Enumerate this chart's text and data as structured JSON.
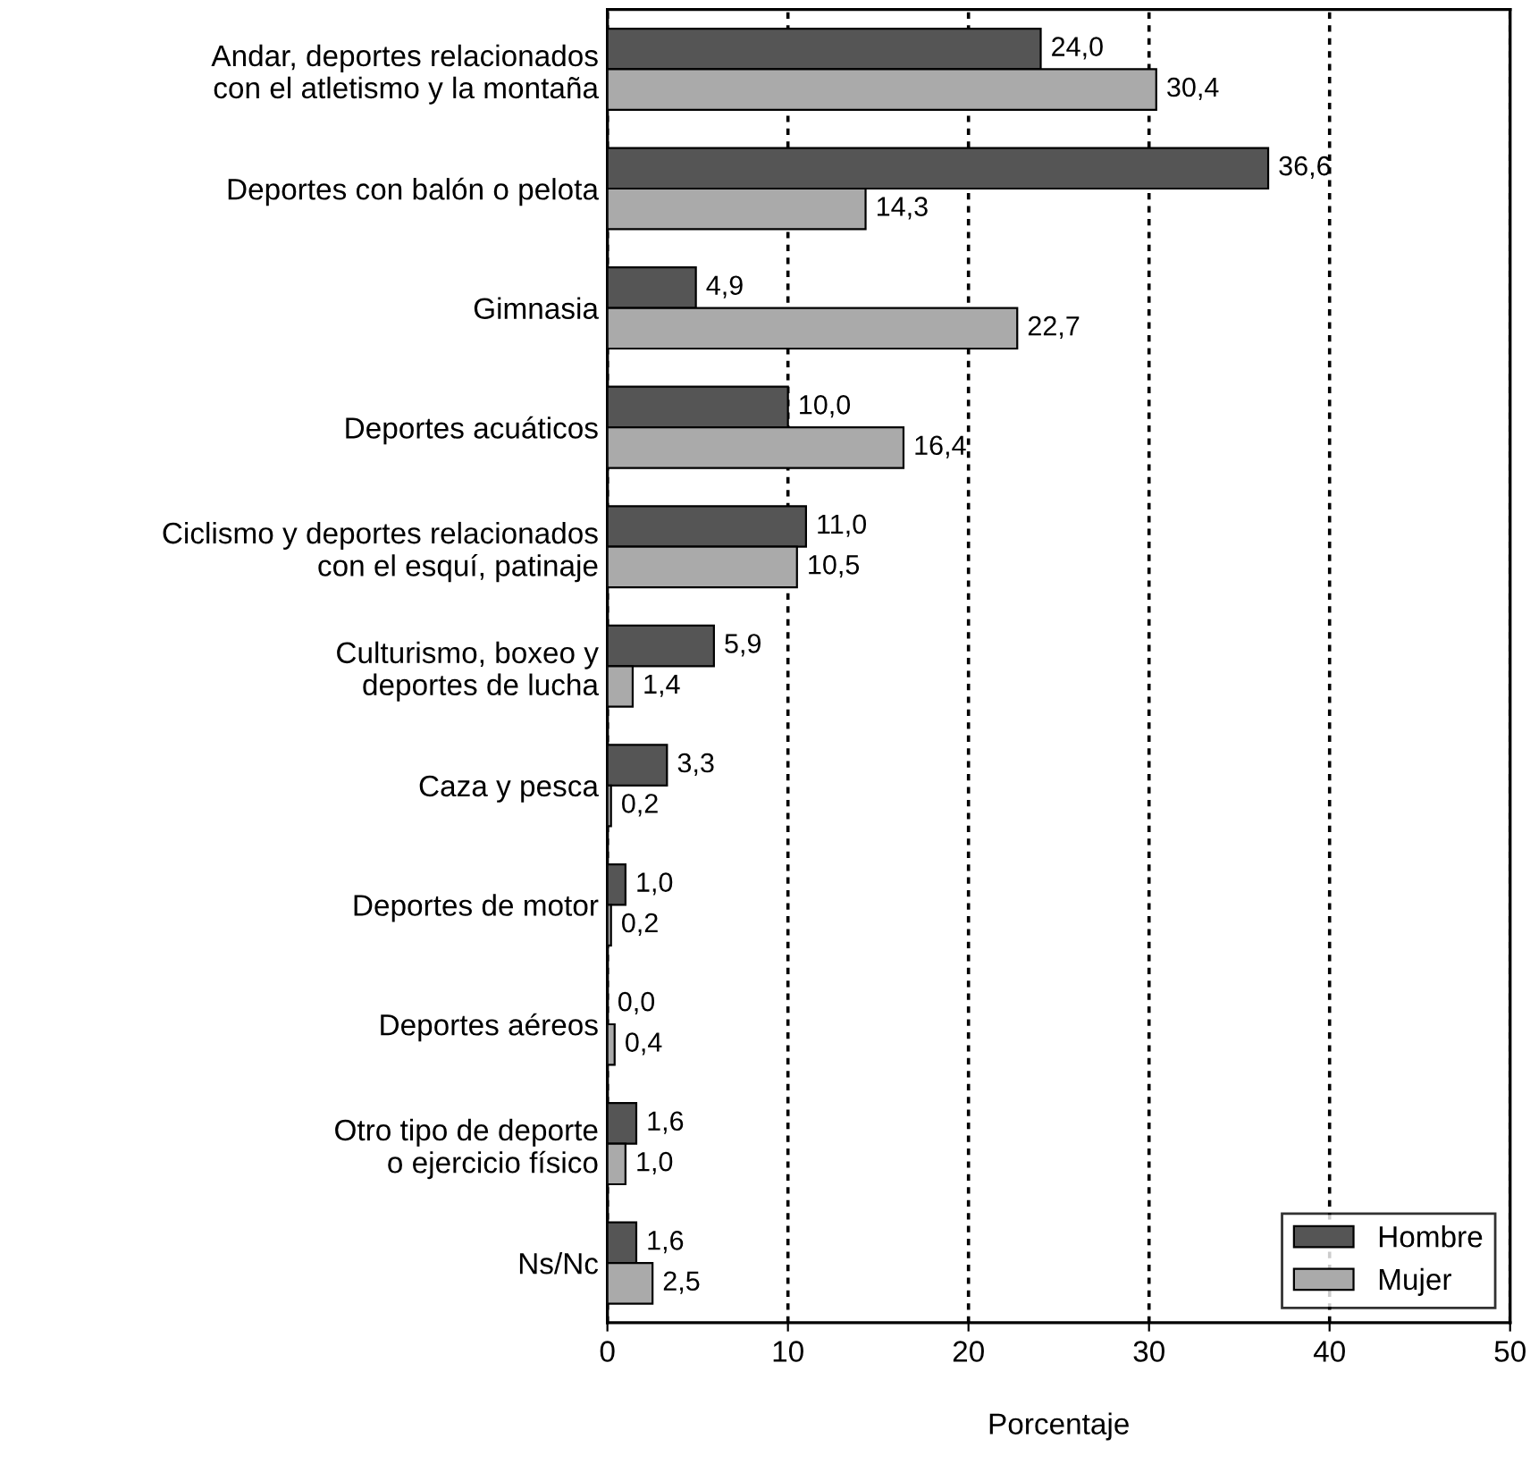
{
  "chart_data": {
    "type": "bar",
    "orientation": "horizontal",
    "xlabel": "Porcentaje",
    "categories": [
      "Andar, deportes relacionados\ncon el atletismo y la montaña",
      "Deportes con balón o pelota",
      "Gimnasia",
      "Deportes acuáticos",
      "Ciclismo y deportes relacionados\ncon el esquí, patinaje",
      "Culturismo, boxeo y\ndeportes de lucha",
      "Caza y pesca",
      "Deportes de motor",
      "Deportes aéreos",
      "Otro tipo de deporte\no ejercicio físico",
      "Ns/Nc"
    ],
    "series": [
      {
        "name": "Hombre",
        "color": "#555555",
        "values": [
          24.0,
          36.6,
          4.9,
          10.0,
          11.0,
          5.9,
          3.3,
          1.0,
          0.0,
          1.6,
          1.6
        ],
        "value_labels": [
          "24,0",
          "36,6",
          "4,9",
          "10,0",
          "11,0",
          "5,9",
          "3,3",
          "1,0",
          "0,0",
          "1,6",
          "1,6"
        ]
      },
      {
        "name": "Mujer",
        "color": "#aaaaaa",
        "values": [
          30.4,
          14.3,
          22.7,
          16.4,
          10.5,
          1.4,
          0.2,
          0.2,
          0.4,
          1.0,
          2.5
        ],
        "value_labels": [
          "30,4",
          "14,3",
          "22,7",
          "16,4",
          "10,5",
          "1,4",
          "0,2",
          "0,2",
          "0,4",
          "1,0",
          "2,5"
        ]
      }
    ],
    "xlim": [
      0,
      50
    ],
    "xticks": [
      0,
      10,
      20,
      30,
      40,
      50
    ],
    "grid": "x",
    "legend": "bottom right"
  }
}
